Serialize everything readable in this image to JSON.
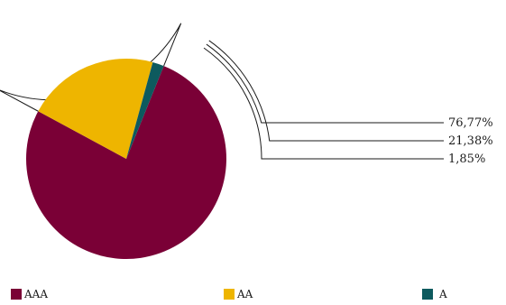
{
  "chart_data": {
    "type": "pie",
    "categories": [
      "AAA",
      "AA",
      "A"
    ],
    "values": [
      76.77,
      21.38,
      1.85
    ],
    "value_labels": [
      "76,77%",
      "21,38%",
      "1,85%"
    ],
    "colors": [
      "#7a0036",
      "#eeb500",
      "#0d5a5e"
    ],
    "legend_position": "bottom"
  }
}
